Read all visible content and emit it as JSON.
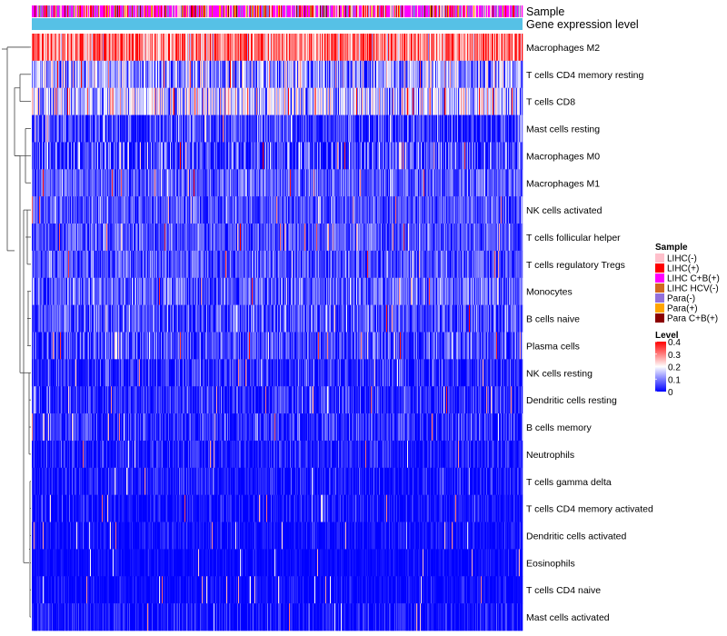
{
  "chart_data": {
    "type": "heatmap",
    "title": "",
    "column_annotations": [
      {
        "name": "Sample",
        "label": "Sample"
      },
      {
        "name": "Gene expression level",
        "label": "Gene expression level",
        "color": "#56c1e6"
      }
    ],
    "rows": [
      {
        "name": "Macrophages M2",
        "mean": 0.3,
        "sd": 0.07
      },
      {
        "name": "T cells CD4 memory resting",
        "mean": 0.12,
        "sd": 0.07
      },
      {
        "name": "T cells CD8",
        "mean": 0.16,
        "sd": 0.08
      },
      {
        "name": "Mast cells resting",
        "mean": 0.04,
        "sd": 0.05
      },
      {
        "name": "Macrophages M0",
        "mean": 0.05,
        "sd": 0.07
      },
      {
        "name": "Macrophages M1",
        "mean": 0.07,
        "sd": 0.04
      },
      {
        "name": "NK cells activated",
        "mean": 0.06,
        "sd": 0.04
      },
      {
        "name": "T cells follicular helper",
        "mean": 0.06,
        "sd": 0.04
      },
      {
        "name": "T cells regulatory  Tregs",
        "mean": 0.06,
        "sd": 0.04
      },
      {
        "name": "Monocytes",
        "mean": 0.07,
        "sd": 0.05
      },
      {
        "name": "B cells naive",
        "mean": 0.06,
        "sd": 0.05
      },
      {
        "name": "Plasma cells",
        "mean": 0.05,
        "sd": 0.05
      },
      {
        "name": "NK cells resting",
        "mean": 0.03,
        "sd": 0.04
      },
      {
        "name": "Dendritic cells resting",
        "mean": 0.03,
        "sd": 0.04
      },
      {
        "name": "B cells memory",
        "mean": 0.03,
        "sd": 0.04
      },
      {
        "name": "Neutrophils",
        "mean": 0.02,
        "sd": 0.03
      },
      {
        "name": "T cells gamma delta",
        "mean": 0.015,
        "sd": 0.03
      },
      {
        "name": "T cells CD4 memory activated",
        "mean": 0.01,
        "sd": 0.03
      },
      {
        "name": "Dendritic cells activated",
        "mean": 0.01,
        "sd": 0.02
      },
      {
        "name": "Eosinophils",
        "mean": 0.005,
        "sd": 0.015
      },
      {
        "name": "T cells CD4 naive",
        "mean": 0.005,
        "sd": 0.02
      },
      {
        "name": "Mast cells activated",
        "mean": 0.01,
        "sd": 0.03
      }
    ],
    "n_columns": 540,
    "value_range": [
      0,
      0.4
    ],
    "color_scale": [
      "#0000ff",
      "#ffffff",
      "#ff0000"
    ],
    "legends": {
      "sample": {
        "title": "Sample",
        "items": [
          {
            "label": "LIHC(-)",
            "color": "#ffc0cb"
          },
          {
            "label": "LIHC(+)",
            "color": "#ff0000"
          },
          {
            "label": "LIHC C+B(+)",
            "color": "#ff00ff"
          },
          {
            "label": "LIHC HCV(-)",
            "color": "#d2691e"
          },
          {
            "label": "Para(-)",
            "color": "#9370db"
          },
          {
            "label": "Para(+)",
            "color": "#ffa500"
          },
          {
            "label": "Para C+B(+)",
            "color": "#8b0000"
          }
        ]
      },
      "level": {
        "title": "Level",
        "ticks": [
          "0.4",
          "0.3",
          "0.2",
          "0.1",
          "0"
        ]
      }
    },
    "dendrogram": "row clustering tree on left side"
  }
}
